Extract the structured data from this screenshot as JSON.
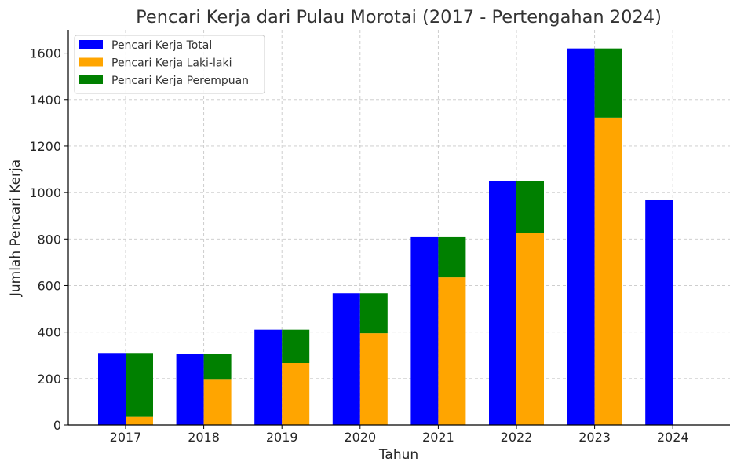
{
  "chart_data": {
    "type": "bar",
    "title": "Pencari Kerja dari Pulau Morotai (2017 - Pertengahan 2024)",
    "xlabel": "Tahun",
    "ylabel": "Jumlah Pencari Kerja",
    "categories": [
      "2017",
      "2018",
      "2019",
      "2020",
      "2021",
      "2022",
      "2023",
      "2024"
    ],
    "ylim": [
      0,
      1700
    ],
    "yticks": [
      0,
      200,
      400,
      600,
      800,
      1000,
      1200,
      1400,
      1600
    ],
    "grid": true,
    "legend_position": "top-left",
    "series": [
      {
        "name": "Pencari Kerja Total",
        "color": "#0000ff",
        "values": [
          310,
          305,
          410,
          567,
          808,
          1050,
          1620,
          970
        ]
      },
      {
        "name": "Pencari Kerja Laki-laki",
        "color": "#ffa500",
        "values": [
          35,
          195,
          267,
          395,
          635,
          825,
          1322,
          null
        ]
      },
      {
        "name": "Pencari Kerja Perempuan",
        "color": "#008000",
        "values": [
          275,
          110,
          143,
          172,
          173,
          225,
          298,
          null
        ]
      }
    ]
  }
}
